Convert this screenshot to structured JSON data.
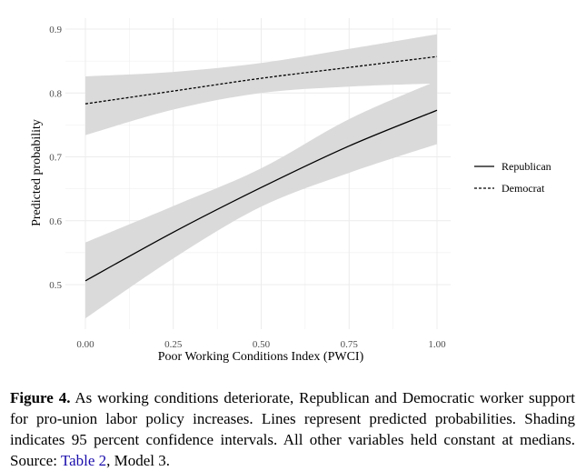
{
  "chart_data": {
    "type": "line",
    "xlabel": "Poor Working Conditions Index (PWCI)",
    "ylabel": "Predicted probability",
    "xlim": [
      0.0,
      1.0
    ],
    "ylim": [
      0.45,
      0.9
    ],
    "x_ticks": [
      0.0,
      0.25,
      0.5,
      0.75,
      1.0
    ],
    "x_tick_labels": [
      "0.00",
      "0.25",
      "0.50",
      "0.75",
      "1.00"
    ],
    "y_ticks": [
      0.5,
      0.6,
      0.7,
      0.8,
      0.9
    ],
    "y_tick_labels": [
      "0.5",
      "0.6",
      "0.7",
      "0.8",
      "0.9"
    ],
    "grid": true,
    "legend_position": "right",
    "series": [
      {
        "name": "Republican",
        "line_style": "solid",
        "x": [
          0.0,
          0.25,
          0.5,
          0.75,
          1.0
        ],
        "y": [
          0.506,
          0.582,
          0.652,
          0.717,
          0.773
        ],
        "ci_low": [
          0.447,
          0.541,
          0.622,
          0.675,
          0.72
        ],
        "ci_high": [
          0.566,
          0.623,
          0.682,
          0.759,
          0.819
        ]
      },
      {
        "name": "Democrat",
        "line_style": "dashed",
        "x": [
          0.0,
          0.25,
          0.5,
          0.75,
          1.0
        ],
        "y": [
          0.783,
          0.803,
          0.823,
          0.84,
          0.857
        ],
        "ci_low": [
          0.734,
          0.774,
          0.8,
          0.81,
          0.815
        ],
        "ci_high": [
          0.826,
          0.833,
          0.847,
          0.869,
          0.892
        ]
      }
    ]
  },
  "caption": {
    "label": "Figure 4.",
    "text_before_link": " As working conditions deteriorate, Republican and Democratic worker support for pro-union labor policy increases. Lines represent predicted probabilities. Shading indicates 95 percent confidence intervals. All other variables held constant at medians. Source: ",
    "link_text": "Table 2",
    "text_after_link": ", Model 3."
  },
  "colors": {
    "ci_fill": "#dadada",
    "grid": "#ececec",
    "line": "#000000",
    "link": "#1a0dab"
  }
}
